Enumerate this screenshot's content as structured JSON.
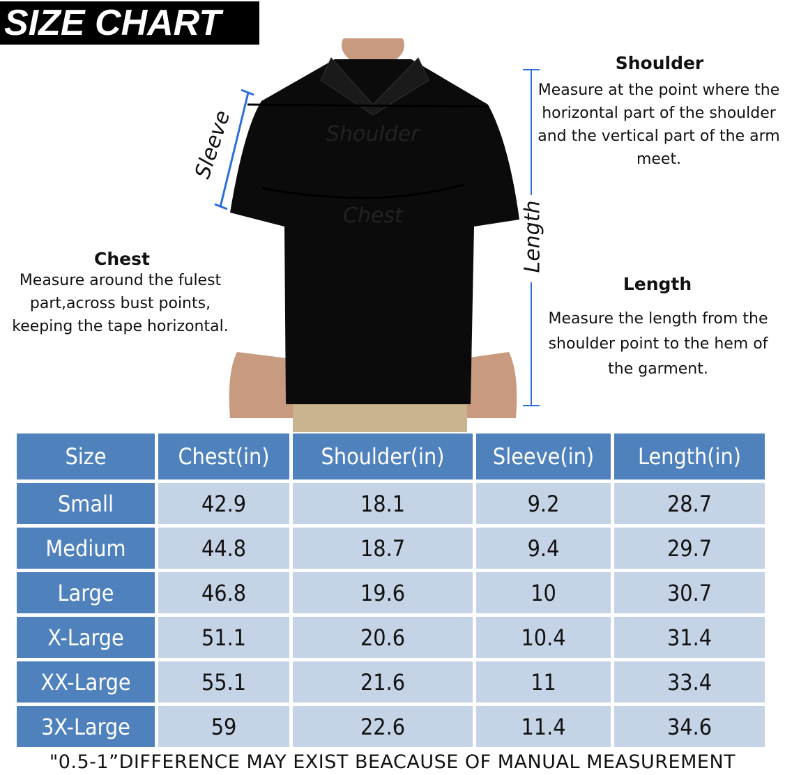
{
  "title": "SIZE CHART",
  "shirt_labels": {
    "shoulder": "Shoulder",
    "chest": "Chest",
    "sleeve": "Sleeve",
    "length": "Length"
  },
  "shoulder": {
    "heading": "Shoulder",
    "text": "Measure at the point where the horizontal part of the shoulder and the vertical part of the arm meet."
  },
  "chest": {
    "heading": "Chest",
    "text": "Measure around the fulest part,across bust points, keeping the tape horizontal."
  },
  "length": {
    "heading": "Length",
    "text": "Measure the length from the shoulder point to the hem of the garment."
  },
  "colors": {
    "header_blue": "#4f81bd",
    "cell_light": "#c5d3e6",
    "measure_line": "#2a6fdb"
  },
  "table": {
    "headers": [
      "Size",
      "Chest(in)",
      "Shoulder(in)",
      "Sleeve(in)",
      "Length(in)"
    ],
    "rows": [
      [
        "Small",
        "42.9",
        "18.1",
        "9.2",
        "28.7"
      ],
      [
        "Medium",
        "44.8",
        "18.7",
        "9.4",
        "29.7"
      ],
      [
        "Large",
        "46.8",
        "19.6",
        "10",
        "30.7"
      ],
      [
        "X-Large",
        "51.1",
        "20.6",
        "10.4",
        "31.4"
      ],
      [
        "XX-Large",
        "55.1",
        "21.6",
        "11",
        "33.4"
      ],
      [
        "3X-Large",
        "59",
        "22.6",
        "11.4",
        "34.6"
      ]
    ]
  },
  "note": "\"0.5-1”DIFFERENCE MAY EXIST BEACAUSE OF MANUAL MEASUREMENT"
}
